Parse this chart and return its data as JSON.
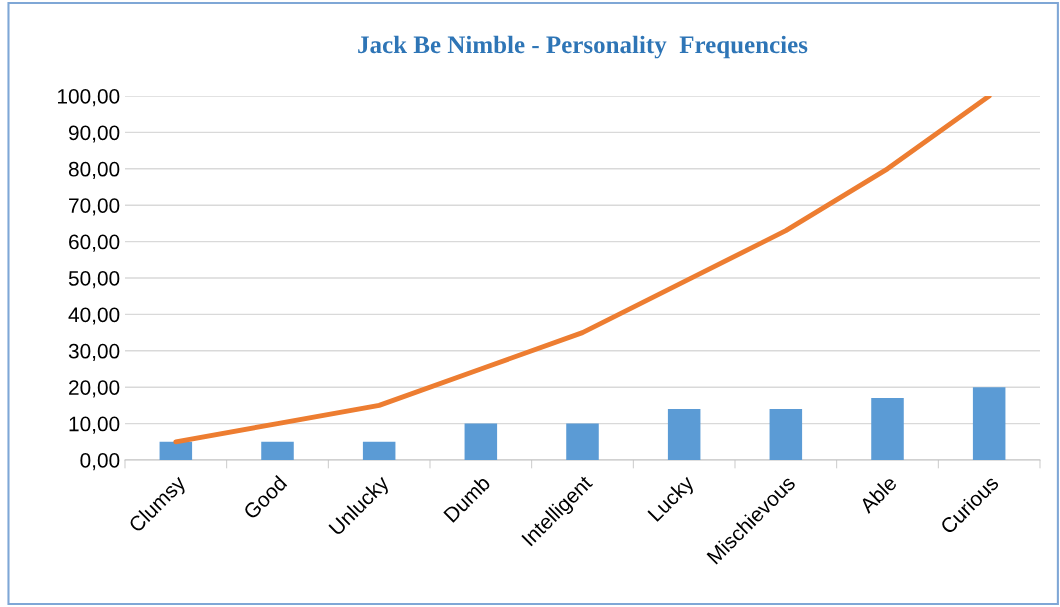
{
  "chart_data": {
    "type": "bar",
    "title": "Jack Be Nimble - Personality  Frequencies",
    "categories": [
      "Clumsy",
      "Good",
      "Unlucky",
      "Dumb",
      "Intelligent",
      "Lucky",
      "Mischievous",
      "Able",
      "Curious"
    ],
    "series": [
      {
        "color": "#5b9bd5",
        "values": [
          5,
          5,
          5,
          10,
          10,
          14,
          14,
          17,
          20
        ]
      },
      {
        "type": "line",
        "color": "#ed7d31",
        "values": [
          5,
          10,
          15,
          25,
          35,
          49,
          63,
          80,
          100
        ]
      }
    ],
    "ylim": [
      0,
      100
    ],
    "yticks": [
      {
        "value": 0,
        "label": "0,00"
      },
      {
        "value": 10,
        "label": "10,00"
      },
      {
        "value": 20,
        "label": "20,00"
      },
      {
        "value": 30,
        "label": "30,00"
      },
      {
        "value": 40,
        "label": "40,00"
      },
      {
        "value": 50,
        "label": "50,00"
      },
      {
        "value": 60,
        "label": "60,00"
      },
      {
        "value": 70,
        "label": "70,00"
      },
      {
        "value": 80,
        "label": "80,00"
      },
      {
        "value": 90,
        "label": "90,00"
      },
      {
        "value": 100,
        "label": "100,00"
      }
    ],
    "grid": "y",
    "marker": "none",
    "line_style": "solid"
  }
}
